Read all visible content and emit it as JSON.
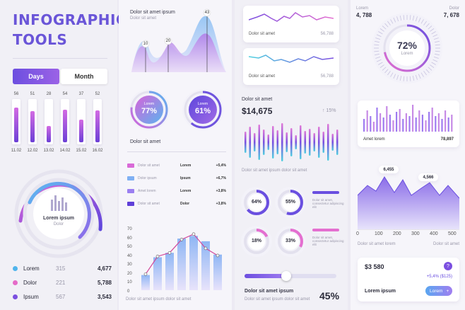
{
  "colors": {
    "purple": "#6a55d8",
    "pink": "#e46fd0",
    "blue": "#5aa6f0",
    "teal": "#4fd1e0"
  },
  "col1": {
    "title_line1": "INFOGRAPHIC",
    "title_line2": "TOOLS",
    "tabs": [
      "Days",
      "Month"
    ],
    "bars": [
      {
        "value": "56",
        "date": "11.02",
        "fill": 0.85
      },
      {
        "value": "51",
        "date": "12.02",
        "fill": 0.75
      },
      {
        "value": "28",
        "date": "13.02",
        "fill": 0.4
      },
      {
        "value": "54",
        "date": "14.02",
        "fill": 0.8
      },
      {
        "value": "37",
        "date": "15.02",
        "fill": 0.55
      },
      {
        "value": "52",
        "date": "16.02",
        "fill": 0.78
      }
    ],
    "ring_label": "Lorem ipsum",
    "ring_sub": "Dolor",
    "legend": [
      {
        "name": "Lorem",
        "a": "315",
        "b": "4,677",
        "color": "#4fb4ec"
      },
      {
        "name": "Dolor",
        "a": "221",
        "b": "5,788",
        "color": "#e56ac8"
      },
      {
        "name": "Ipsum",
        "a": "567",
        "b": "3,543",
        "color": "#7b4fe0"
      }
    ]
  },
  "col2": {
    "header": "Dolor sit amet ipsum",
    "subheader": "Dolor sit amet",
    "peaks": [
      "10",
      "20",
      "43"
    ],
    "donut1": {
      "label": "Lorem",
      "value": "77%"
    },
    "donut2": {
      "label": "Lorem",
      "value": "61%"
    },
    "donut_caption": "Dolor sit amet",
    "table": [
      {
        "t": "Dolor sit amet",
        "k": "Lorem",
        "v": "+5,4%",
        "color": "#d96ad7"
      },
      {
        "t": "Dolor ipsum",
        "k": "Ipsum",
        "v": "+6,7%",
        "color": "#7fb0f3"
      },
      {
        "t": "Amet lorem",
        "k": "Lorem",
        "v": "+3,8%",
        "color": "#9b7ff1"
      },
      {
        "t": "Dolor sit amet",
        "k": "Dolor",
        "v": "+3,8%",
        "color": "#5f3fd8"
      }
    ],
    "chart_yticks": [
      "70",
      "60",
      "50",
      "40",
      "30",
      "20",
      "10",
      "0"
    ],
    "chart_caption": "Dolor sit amet ipsum dolor sit amet",
    "chart_data": {
      "type": "bar",
      "categories": [
        "1",
        "2",
        "3",
        "4",
        "5",
        "6",
        "7"
      ],
      "values": [
        17,
        37,
        42,
        58,
        61,
        55,
        40
      ],
      "line": [
        18,
        38,
        42,
        57,
        63,
        47,
        39
      ],
      "ylim": [
        0,
        70
      ]
    }
  },
  "col3": {
    "card1": {
      "title": "Dolor sit amet",
      "value": "56,788"
    },
    "card2": {
      "title": "Dolor sit amet",
      "value": "56,788"
    },
    "money_label": "Dolor sit amet",
    "money": "$14,675",
    "change": "↑ 15%",
    "bars_caption": "Dolor sit amet ipsum dolor sit amet",
    "donuts": [
      {
        "value": "64%",
        "frac": 0.64
      },
      {
        "value": "55%",
        "frac": 0.55
      },
      {
        "value": "18%",
        "frac": 0.18
      },
      {
        "value": "33%",
        "frac": 0.33
      }
    ],
    "notes": [
      "Dolor sit amet, consectetur adipiscing elit",
      "Dolor sit amet, consectetur adipiscing elit"
    ],
    "slider_label": "Dolor sit amet ipsum",
    "slider_sub": "Dolor sit amet ipsum dolor sit amet",
    "slider_value": "45%",
    "slider_frac": 0.45
  },
  "col4": {
    "top_left": {
      "label": "Lorem",
      "value": "4, 788"
    },
    "top_right": {
      "label": "Dolor",
      "value": "7, 678"
    },
    "gauge": {
      "value": "72%",
      "label": "Lorem",
      "frac": 0.72
    },
    "mini_caption": "Amet lorem",
    "mini_value": "78,897",
    "area_labels": [
      "6,455",
      "4,566"
    ],
    "xticks": [
      "0",
      "100",
      "200",
      "300",
      "400",
      "500"
    ],
    "captions": [
      "Dolor sit amet lorem",
      "Dolor sit amet"
    ],
    "card": {
      "value": "$3 580",
      "change": "+5,4% ($125)",
      "label": "Lorem ipsum",
      "button": "Lorem",
      "badge": "?"
    }
  }
}
